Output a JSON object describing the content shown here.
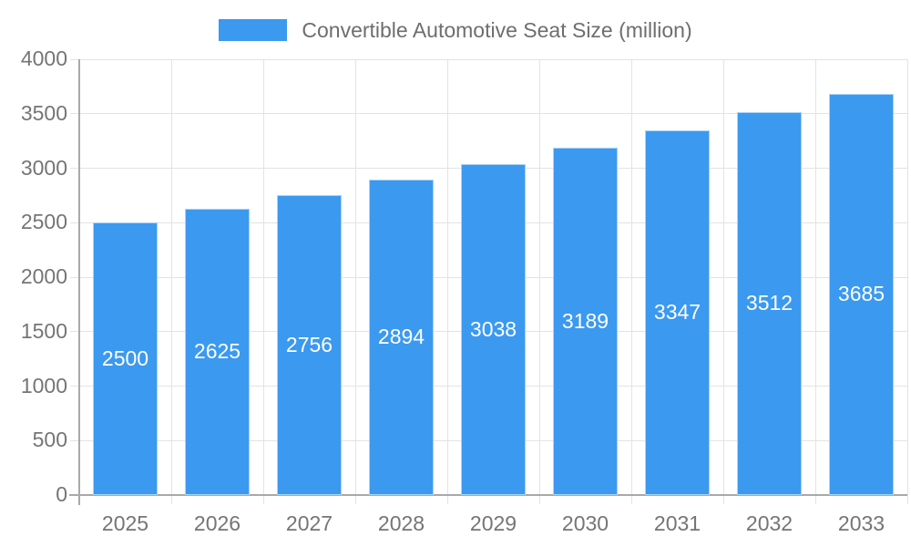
{
  "chart_data": {
    "type": "bar",
    "title": "Convertible Automotive Seat Size (million)",
    "legend": "Convertible Automotive Seat Size (million)",
    "legend_position": "top",
    "categories": [
      "2025",
      "2026",
      "2027",
      "2028",
      "2029",
      "2030",
      "2031",
      "2032",
      "2033"
    ],
    "values": [
      2500,
      2625,
      2756,
      2894,
      3038,
      3189,
      3347,
      3512,
      3685
    ],
    "series": [
      {
        "name": "Convertible Automotive Seat Size (million)",
        "values": [
          2500,
          2625,
          2756,
          2894,
          3038,
          3189,
          3347,
          3512,
          3685
        ]
      }
    ],
    "xlabel": "",
    "ylabel": "",
    "ylim": [
      0,
      4000
    ],
    "ytick_step": 500,
    "yticks": [
      "0",
      "500",
      "1000",
      "1500",
      "2000",
      "2500",
      "3000",
      "3500",
      "4000"
    ],
    "grid": true,
    "bar_value_labels_visible": true,
    "colors": {
      "bar_fill": "#3B99F0",
      "bar_border": "#A9D3F7",
      "gridline": "#E3E3E3",
      "axis_line": "#A9A9A9",
      "tick_text": "#757575",
      "legend_text": "#6E6E6E",
      "value_label_text": "#FFFFFF",
      "background": "#FFFFFF"
    }
  }
}
